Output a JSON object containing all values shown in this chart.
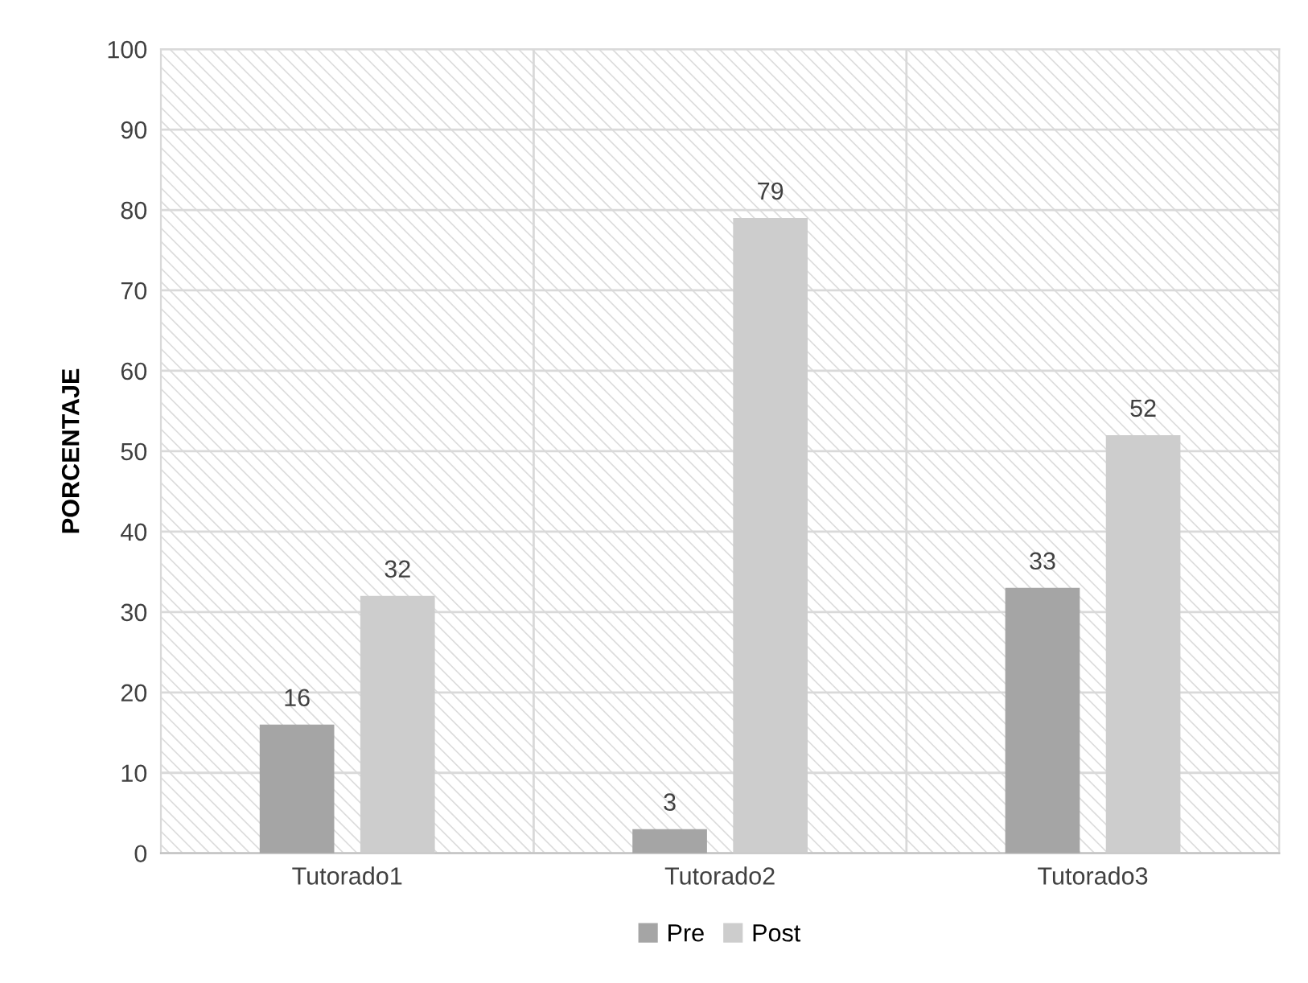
{
  "chart_data": {
    "type": "bar",
    "ylabel": "PORCENTAJE",
    "categories": [
      "Tutorado1",
      "Tutorado2",
      "Tutorado3"
    ],
    "series": [
      {
        "name": "Pre",
        "color": "#a5a5a5",
        "values": [
          16,
          3,
          33
        ]
      },
      {
        "name": "Post",
        "color": "#cdcdcd",
        "values": [
          32,
          79,
          52
        ]
      }
    ],
    "ylim": [
      0,
      100
    ],
    "yticks": [
      0,
      10,
      20,
      30,
      40,
      50,
      60,
      70,
      80,
      90,
      100
    ],
    "grid": true,
    "legend": "bottom",
    "data_labels": true
  }
}
